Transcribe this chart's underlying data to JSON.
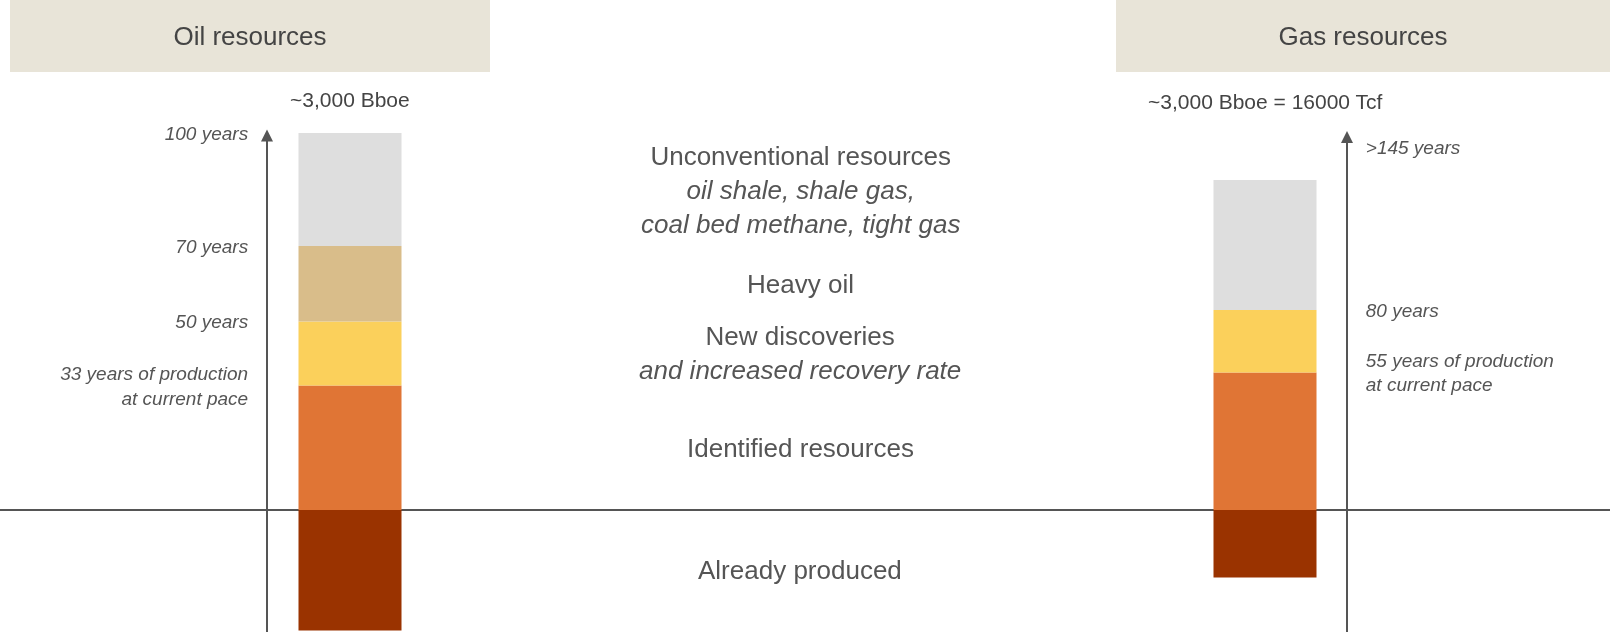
{
  "chart_data": [
    {
      "type": "bar",
      "stacked": true,
      "title": "Oil resources",
      "categories": [
        null
      ],
      "series": [
        {
          "name": "Already produced",
          "color": "#9a3300",
          "values": [
            -32
          ]
        },
        {
          "name": "Identified resources",
          "color": "#e07535",
          "values": [
            33
          ]
        },
        {
          "name": "New discoveries\nand increased recovery rate",
          "color": "#fbd05b",
          "values": [
            17
          ]
        },
        {
          "name": "Heavy oil",
          "color": "#d9bd8a",
          "values": [
            20
          ]
        },
        {
          "name": "Unconventional resources\noil shale, shale gas,\ncoal bed methane, tight gas",
          "color": "#dedede",
          "values": [
            30
          ]
        }
      ],
      "ylim": [
        -32.4,
        100
      ],
      "yticks": [
        {
          "value": 33,
          "label": "33 years of production\nat current pace"
        },
        {
          "value": 50,
          "label": "50 years"
        },
        {
          "value": 70,
          "label": "70 years"
        },
        {
          "value": 100,
          "label": "100 years"
        }
      ],
      "annotations": [
        "~3,000 Bboe"
      ]
    },
    {
      "type": "bar",
      "stacked": true,
      "title": "Gas resources",
      "categories": [
        null
      ],
      "series": [
        {
          "color": "#9a3300",
          "values": [
            -27
          ]
        },
        {
          "color": "#e07535",
          "values": [
            55
          ]
        },
        {
          "color": "#fbd05b",
          "values": [
            25
          ]
        },
        {
          "color": "#d9bd8a",
          "values": [
            0
          ]
        },
        {
          "color": "#dedede",
          "values": [
            52
          ]
        }
      ],
      "ylim": [
        -48.8,
        150
      ],
      "yticks": [
        {
          "value": 55,
          "label": "55 years of production\nat current pace"
        },
        {
          "value": 80,
          "label": "80 years"
        },
        {
          "value": 145,
          "label": ">145 years"
        }
      ],
      "annotations": [
        "~3,000 Bboe = 16000 Tcf"
      ]
    }
  ]
}
